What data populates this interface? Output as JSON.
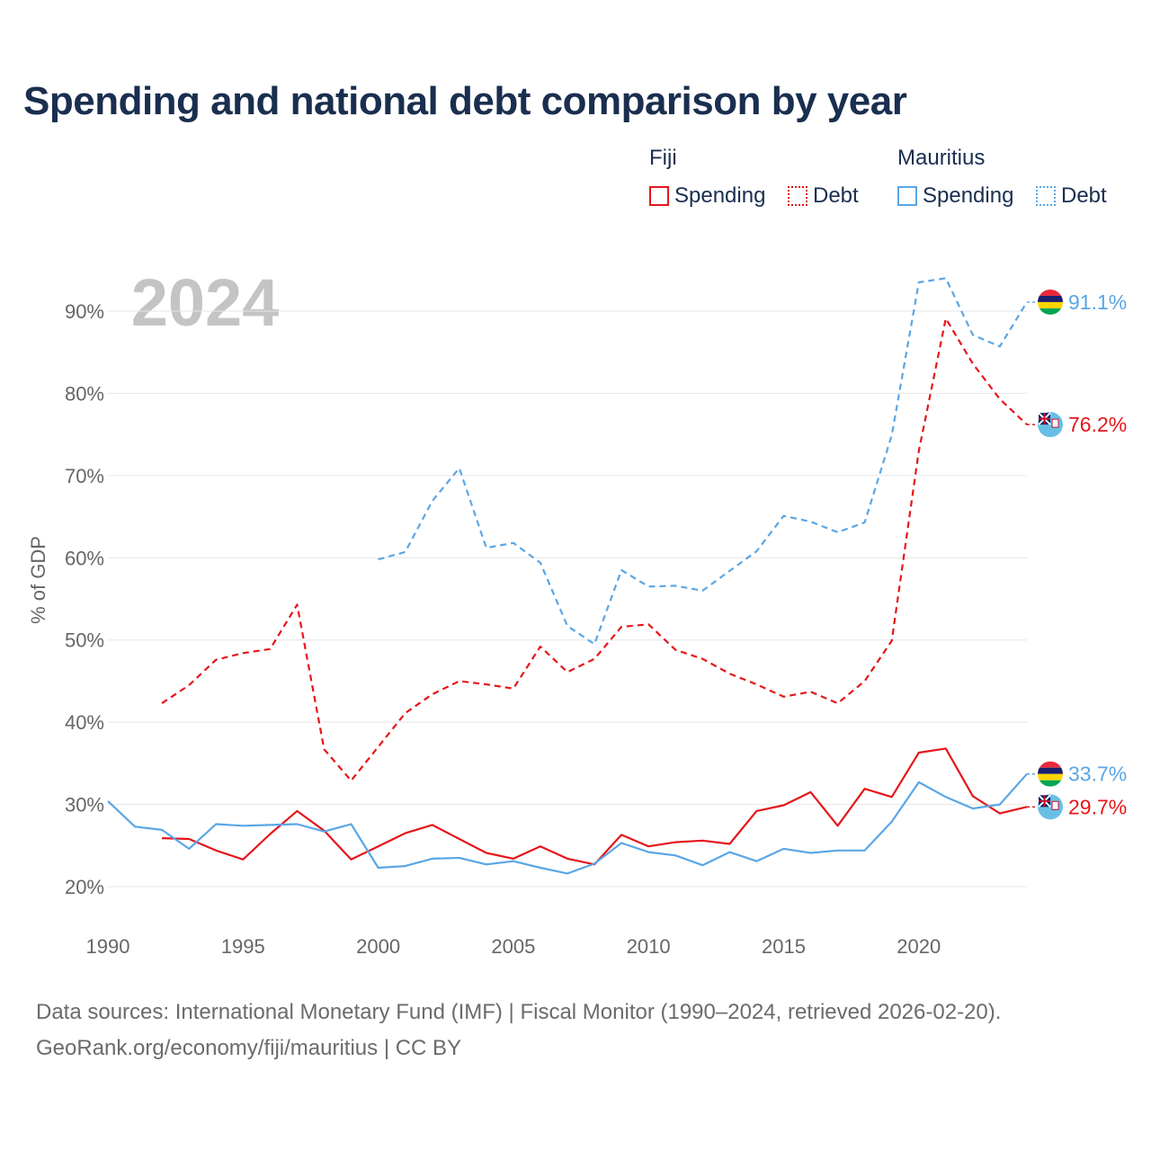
{
  "title": "Spending and national debt comparison by year",
  "legend": {
    "groups": [
      {
        "name": "Fiji",
        "items": [
          {
            "label": "Spending",
            "style": "solid",
            "color": "#e5161b"
          },
          {
            "label": "Debt",
            "style": "dotted",
            "color": "#e5161b"
          }
        ]
      },
      {
        "name": "Mauritius",
        "items": [
          {
            "label": "Spending",
            "style": "solid",
            "color": "#5aa6e6"
          },
          {
            "label": "Debt",
            "style": "dotted",
            "color": "#5aa6e6"
          }
        ]
      }
    ]
  },
  "source": {
    "line1": "Data sources: International Monetary Fund (IMF) | Fiscal Monitor (1990–2024, retrieved 2026-02-20).",
    "line2": "GeoRank.org/economy/fiji/mauritius | CC BY"
  },
  "chart_data": {
    "type": "line",
    "year_label": "2024",
    "ylabel": "% of GDP",
    "xlim": [
      1990,
      2024
    ],
    "ylim": [
      20,
      95
    ],
    "x_ticks": [
      1990,
      1995,
      2000,
      2005,
      2010,
      2015,
      2020
    ],
    "y_ticks": [
      20,
      30,
      40,
      50,
      60,
      70,
      80,
      90
    ],
    "y_tick_labels": [
      "20%",
      "30%",
      "40%",
      "50%",
      "60%",
      "70%",
      "80%",
      "90%"
    ],
    "grid": true,
    "colors": {
      "Fiji": "#e5161b",
      "Mauritius": "#5aa6e6"
    },
    "series": [
      {
        "name": "Fiji Spending",
        "country": "Fiji",
        "style": "solid",
        "color": "#e5161b",
        "x": [
          1992,
          1993,
          1994,
          1995,
          1996,
          1997,
          1998,
          1999,
          2000,
          2001,
          2002,
          2003,
          2004,
          2005,
          2006,
          2007,
          2008,
          2009,
          2010,
          2011,
          2012,
          2013,
          2014,
          2015,
          2016,
          2017,
          2018,
          2019,
          2020,
          2021,
          2022,
          2023,
          2024
        ],
        "values": [
          25.9,
          25.8,
          24.4,
          23.3,
          26.4,
          29.2,
          26.8,
          23.3,
          24.9,
          26.5,
          27.5,
          25.8,
          24.1,
          23.4,
          24.9,
          23.4,
          22.7,
          26.3,
          24.9,
          25.4,
          25.6,
          25.2,
          29.2,
          29.9,
          31.5,
          27.4,
          31.9,
          30.9,
          36.3,
          36.8,
          31.0,
          28.9,
          29.7
        ],
        "end_label": "29.7%"
      },
      {
        "name": "Fiji Debt",
        "country": "Fiji",
        "style": "dashed",
        "color": "#e5161b",
        "x": [
          1992,
          1993,
          1994,
          1995,
          1996,
          1997,
          1998,
          1999,
          2000,
          2001,
          2002,
          2003,
          2004,
          2005,
          2006,
          2007,
          2008,
          2009,
          2010,
          2011,
          2012,
          2013,
          2014,
          2015,
          2016,
          2017,
          2018,
          2019,
          2020,
          2021,
          2022,
          2023,
          2024
        ],
        "values": [
          42.3,
          44.5,
          47.6,
          48.4,
          48.9,
          54.3,
          36.7,
          32.9,
          37.0,
          41.1,
          43.4,
          45.0,
          44.6,
          44.1,
          49.2,
          46.1,
          47.7,
          51.6,
          51.9,
          48.8,
          47.7,
          45.9,
          44.6,
          43.1,
          43.7,
          42.3,
          45.0,
          49.9,
          73.0,
          89.1,
          83.6,
          79.3,
          76.2
        ],
        "end_label": "76.2%"
      },
      {
        "name": "Mauritius Spending",
        "country": "Mauritius",
        "style": "solid",
        "color": "#5aa6e6",
        "x": [
          1990,
          1991,
          1992,
          1993,
          1994,
          1995,
          1996,
          1997,
          1998,
          1999,
          2000,
          2001,
          2002,
          2003,
          2004,
          2005,
          2006,
          2007,
          2008,
          2009,
          2010,
          2011,
          2012,
          2013,
          2014,
          2015,
          2016,
          2017,
          2018,
          2019,
          2020,
          2021,
          2022,
          2023,
          2024
        ],
        "values": [
          30.4,
          27.3,
          26.9,
          24.6,
          27.6,
          27.4,
          27.5,
          27.6,
          26.7,
          27.6,
          22.3,
          22.5,
          23.4,
          23.5,
          22.7,
          23.1,
          22.3,
          21.6,
          22.8,
          25.3,
          24.2,
          23.8,
          22.6,
          24.2,
          23.1,
          24.6,
          24.1,
          24.4,
          24.4,
          27.9,
          32.7,
          30.9,
          29.5,
          30.0,
          33.7
        ],
        "end_label": "33.7%"
      },
      {
        "name": "Mauritius Debt",
        "country": "Mauritius",
        "style": "dashed",
        "color": "#5aa6e6",
        "x": [
          2000,
          2001,
          2002,
          2003,
          2004,
          2005,
          2006,
          2007,
          2008,
          2009,
          2010,
          2011,
          2012,
          2013,
          2014,
          2015,
          2016,
          2017,
          2018,
          2019,
          2020,
          2021,
          2022,
          2023,
          2024
        ],
        "values": [
          59.8,
          60.7,
          66.9,
          70.9,
          61.2,
          61.8,
          59.4,
          51.7,
          49.5,
          58.5,
          56.5,
          56.6,
          56.0,
          58.4,
          60.8,
          65.1,
          64.4,
          63.1,
          64.3,
          74.9,
          93.5,
          94.0,
          87.1,
          85.7,
          91.1
        ],
        "end_label": "91.1%"
      }
    ]
  }
}
